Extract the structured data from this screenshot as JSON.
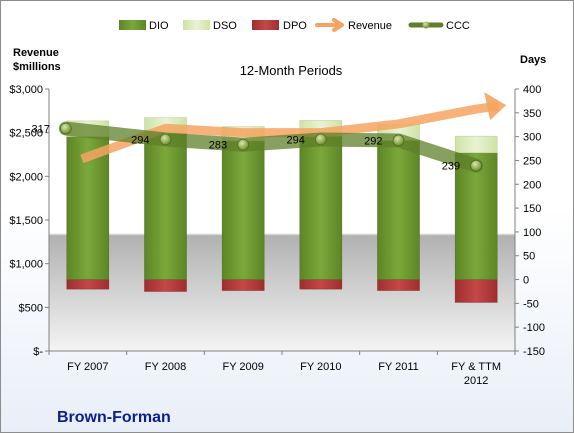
{
  "chart_data": {
    "type": "bar",
    "title": "12-Month Periods",
    "company": "Brown-Forman",
    "left_axis_title": [
      "Revenue",
      "$millions"
    ],
    "right_axis_title": "Days",
    "categories": [
      "FY 2007",
      "FY 2008",
      "FY 2009",
      "FY 2010",
      "FY 2011",
      "FY & TTM 2012"
    ],
    "category_label_lines": [
      [
        "FY 2007"
      ],
      [
        "FY 2008"
      ],
      [
        "FY 2009"
      ],
      [
        "FY 2010"
      ],
      [
        "FY 2011"
      ],
      [
        "FY & TTM",
        "2012"
      ]
    ],
    "left_axis": {
      "ylim": [
        0,
        3000
      ],
      "ticks": [
        "$-",
        "$500",
        "$1,000",
        "$1,500",
        "$2,000",
        "$2,500",
        "$3,000"
      ],
      "tick_values": [
        0,
        500,
        1000,
        1500,
        2000,
        2500,
        3000
      ]
    },
    "right_axis": {
      "ylim": [
        -150,
        400
      ],
      "ticks": [
        "-150",
        "-100",
        "-50",
        "0",
        "50",
        "100",
        "150",
        "200",
        "250",
        "300",
        "350",
        "400"
      ],
      "tick_values": [
        -150,
        -100,
        -50,
        0,
        50,
        100,
        150,
        200,
        250,
        300,
        350,
        400
      ]
    },
    "series": [
      {
        "name": "DIO",
        "axis": "days",
        "kind": "stacked-bar",
        "color": "#6e9a2e",
        "values": [
          300,
          307,
          291,
          301,
          292,
          266
        ]
      },
      {
        "name": "DSO",
        "axis": "days",
        "kind": "stacked-bar",
        "color": "#d8e8b8",
        "values": [
          33,
          33,
          30,
          33,
          33,
          35
        ]
      },
      {
        "name": "DPO",
        "axis": "days",
        "kind": "bar-negative",
        "color": "#b43c3c",
        "values": [
          -20,
          -25,
          -23,
          -20,
          -23,
          -48
        ]
      },
      {
        "name": "Revenue",
        "axis": "revenue",
        "kind": "arrow-line",
        "color": "#f4a460",
        "values": [
          2200,
          2550,
          2500,
          2500,
          2600,
          2770
        ]
      },
      {
        "name": "CCC",
        "axis": "days",
        "kind": "line-markers",
        "color": "#5f7f2a",
        "values": [
          317,
          294,
          283,
          294,
          292,
          239
        ]
      }
    ],
    "ccc_labels": [
      "317",
      "294",
      "283",
      "294",
      "292",
      "239"
    ],
    "legend": {
      "placement": "top",
      "items": [
        "DIO",
        "DSO",
        "DPO",
        "Revenue",
        "CCC"
      ]
    },
    "grid": false
  }
}
